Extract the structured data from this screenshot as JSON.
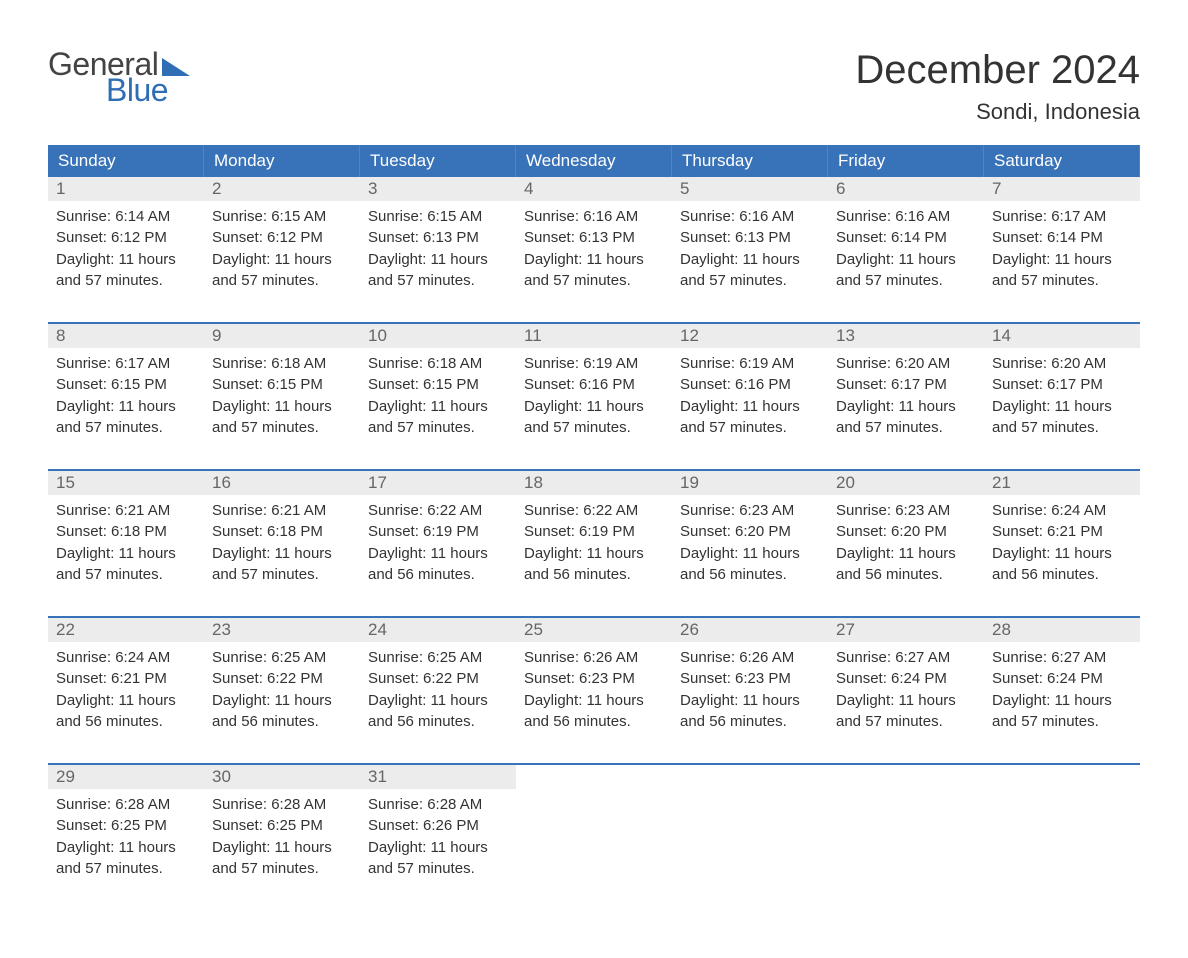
{
  "brand": {
    "part1": "General",
    "part2": "Blue",
    "accent_color": "#2f6eb5",
    "text_color": "#444444"
  },
  "title": "December 2024",
  "location": "Sondi, Indonesia",
  "colors": {
    "header_bg": "#3872b8",
    "header_text": "#ffffff",
    "daynum_bg": "#ececec",
    "daynum_text": "#666666",
    "body_text": "#333333",
    "week_divider": "#3872b8",
    "page_bg": "#ffffff"
  },
  "typography": {
    "title_fontsize": 40,
    "location_fontsize": 22,
    "header_fontsize": 17,
    "daynum_fontsize": 17,
    "info_fontsize": 15,
    "logo_fontsize": 32
  },
  "layout": {
    "columns": 7,
    "weeks": 5,
    "cell_lines": 4
  },
  "day_names": [
    "Sunday",
    "Monday",
    "Tuesday",
    "Wednesday",
    "Thursday",
    "Friday",
    "Saturday"
  ],
  "labels": {
    "sunrise": "Sunrise:",
    "sunset": "Sunset:",
    "daylight_prefix": "Daylight:",
    "daylight_line2_suffix": "."
  },
  "days": [
    {
      "n": 1,
      "sunrise": "6:14 AM",
      "sunset": "6:12 PM",
      "dl1": "11 hours",
      "dl2": "and 57 minutes"
    },
    {
      "n": 2,
      "sunrise": "6:15 AM",
      "sunset": "6:12 PM",
      "dl1": "11 hours",
      "dl2": "and 57 minutes"
    },
    {
      "n": 3,
      "sunrise": "6:15 AM",
      "sunset": "6:13 PM",
      "dl1": "11 hours",
      "dl2": "and 57 minutes"
    },
    {
      "n": 4,
      "sunrise": "6:16 AM",
      "sunset": "6:13 PM",
      "dl1": "11 hours",
      "dl2": "and 57 minutes"
    },
    {
      "n": 5,
      "sunrise": "6:16 AM",
      "sunset": "6:13 PM",
      "dl1": "11 hours",
      "dl2": "and 57 minutes"
    },
    {
      "n": 6,
      "sunrise": "6:16 AM",
      "sunset": "6:14 PM",
      "dl1": "11 hours",
      "dl2": "and 57 minutes"
    },
    {
      "n": 7,
      "sunrise": "6:17 AM",
      "sunset": "6:14 PM",
      "dl1": "11 hours",
      "dl2": "and 57 minutes"
    },
    {
      "n": 8,
      "sunrise": "6:17 AM",
      "sunset": "6:15 PM",
      "dl1": "11 hours",
      "dl2": "and 57 minutes"
    },
    {
      "n": 9,
      "sunrise": "6:18 AM",
      "sunset": "6:15 PM",
      "dl1": "11 hours",
      "dl2": "and 57 minutes"
    },
    {
      "n": 10,
      "sunrise": "6:18 AM",
      "sunset": "6:15 PM",
      "dl1": "11 hours",
      "dl2": "and 57 minutes"
    },
    {
      "n": 11,
      "sunrise": "6:19 AM",
      "sunset": "6:16 PM",
      "dl1": "11 hours",
      "dl2": "and 57 minutes"
    },
    {
      "n": 12,
      "sunrise": "6:19 AM",
      "sunset": "6:16 PM",
      "dl1": "11 hours",
      "dl2": "and 57 minutes"
    },
    {
      "n": 13,
      "sunrise": "6:20 AM",
      "sunset": "6:17 PM",
      "dl1": "11 hours",
      "dl2": "and 57 minutes"
    },
    {
      "n": 14,
      "sunrise": "6:20 AM",
      "sunset": "6:17 PM",
      "dl1": "11 hours",
      "dl2": "and 57 minutes"
    },
    {
      "n": 15,
      "sunrise": "6:21 AM",
      "sunset": "6:18 PM",
      "dl1": "11 hours",
      "dl2": "and 57 minutes"
    },
    {
      "n": 16,
      "sunrise": "6:21 AM",
      "sunset": "6:18 PM",
      "dl1": "11 hours",
      "dl2": "and 57 minutes"
    },
    {
      "n": 17,
      "sunrise": "6:22 AM",
      "sunset": "6:19 PM",
      "dl1": "11 hours",
      "dl2": "and 56 minutes"
    },
    {
      "n": 18,
      "sunrise": "6:22 AM",
      "sunset": "6:19 PM",
      "dl1": "11 hours",
      "dl2": "and 56 minutes"
    },
    {
      "n": 19,
      "sunrise": "6:23 AM",
      "sunset": "6:20 PM",
      "dl1": "11 hours",
      "dl2": "and 56 minutes"
    },
    {
      "n": 20,
      "sunrise": "6:23 AM",
      "sunset": "6:20 PM",
      "dl1": "11 hours",
      "dl2": "and 56 minutes"
    },
    {
      "n": 21,
      "sunrise": "6:24 AM",
      "sunset": "6:21 PM",
      "dl1": "11 hours",
      "dl2": "and 56 minutes"
    },
    {
      "n": 22,
      "sunrise": "6:24 AM",
      "sunset": "6:21 PM",
      "dl1": "11 hours",
      "dl2": "and 56 minutes"
    },
    {
      "n": 23,
      "sunrise": "6:25 AM",
      "sunset": "6:22 PM",
      "dl1": "11 hours",
      "dl2": "and 56 minutes"
    },
    {
      "n": 24,
      "sunrise": "6:25 AM",
      "sunset": "6:22 PM",
      "dl1": "11 hours",
      "dl2": "and 56 minutes"
    },
    {
      "n": 25,
      "sunrise": "6:26 AM",
      "sunset": "6:23 PM",
      "dl1": "11 hours",
      "dl2": "and 56 minutes"
    },
    {
      "n": 26,
      "sunrise": "6:26 AM",
      "sunset": "6:23 PM",
      "dl1": "11 hours",
      "dl2": "and 56 minutes"
    },
    {
      "n": 27,
      "sunrise": "6:27 AM",
      "sunset": "6:24 PM",
      "dl1": "11 hours",
      "dl2": "and 57 minutes"
    },
    {
      "n": 28,
      "sunrise": "6:27 AM",
      "sunset": "6:24 PM",
      "dl1": "11 hours",
      "dl2": "and 57 minutes"
    },
    {
      "n": 29,
      "sunrise": "6:28 AM",
      "sunset": "6:25 PM",
      "dl1": "11 hours",
      "dl2": "and 57 minutes"
    },
    {
      "n": 30,
      "sunrise": "6:28 AM",
      "sunset": "6:25 PM",
      "dl1": "11 hours",
      "dl2": "and 57 minutes"
    },
    {
      "n": 31,
      "sunrise": "6:28 AM",
      "sunset": "6:26 PM",
      "dl1": "11 hours",
      "dl2": "and 57 minutes"
    }
  ]
}
